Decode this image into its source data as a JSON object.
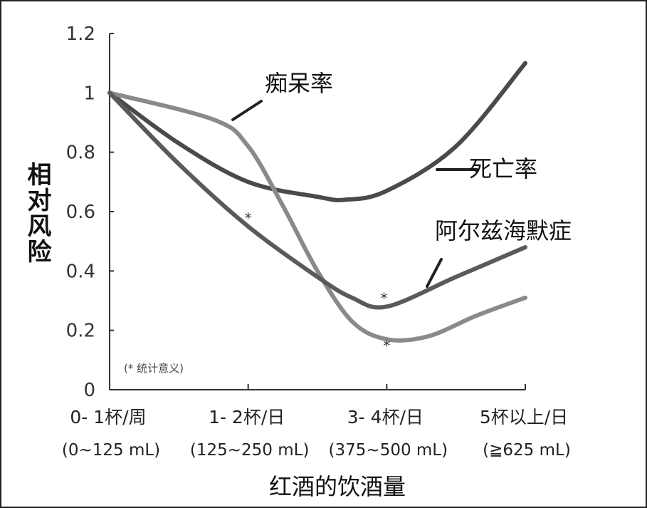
{
  "chart_data": {
    "type": "line",
    "title": "",
    "xlabel": "红酒的饮酒量",
    "ylabel": "相对风险",
    "ylim": [
      0,
      1.2
    ],
    "yticks": [
      "0",
      "0.2",
      "0.4",
      "0.6",
      "0.8",
      "1",
      "1.2"
    ],
    "categories": [
      {
        "label": "0- 1杯/周",
        "sub": "(0~125 mL)"
      },
      {
        "label": "1- 2杯/日",
        "sub": "(125~250 mL)"
      },
      {
        "label": "3- 4杯/日",
        "sub": "(375~500 mL)"
      },
      {
        "label": "5杯以上/日",
        "sub": "(≧625 mL)"
      }
    ],
    "series": [
      {
        "name": "死亡率",
        "color": "#4a4a4a",
        "points": [
          [
            0,
            1.0
          ],
          [
            0.5,
            0.83
          ],
          [
            1,
            0.7
          ],
          [
            1.5,
            0.65
          ],
          [
            1.7,
            0.64
          ],
          [
            2,
            0.67
          ],
          [
            2.5,
            0.82
          ],
          [
            3,
            1.1
          ]
        ]
      },
      {
        "name": "痴呆率",
        "color": "#8a8a8a",
        "points": [
          [
            0,
            1.0
          ],
          [
            0.75,
            0.91
          ],
          [
            1,
            0.82
          ],
          [
            1.25,
            0.62
          ],
          [
            1.5,
            0.4
          ],
          [
            1.75,
            0.23
          ],
          [
            2,
            0.17
          ],
          [
            2.3,
            0.18
          ],
          [
            2.65,
            0.25
          ],
          [
            3,
            0.31
          ]
        ]
      },
      {
        "name": "阿尔兹海默症",
        "color": "#5a5a5a",
        "points": [
          [
            0,
            1.0
          ],
          [
            0.5,
            0.76
          ],
          [
            1,
            0.55
          ],
          [
            1.5,
            0.38
          ],
          [
            1.75,
            0.31
          ],
          [
            2,
            0.28
          ],
          [
            2.5,
            0.38
          ],
          [
            3,
            0.48
          ]
        ]
      }
    ],
    "annotations": [
      {
        "text": "*",
        "x": 1.0,
        "y": 0.58
      },
      {
        "text": "*",
        "x": 1.98,
        "y": 0.31
      },
      {
        "text": "*",
        "x": 2.0,
        "y": 0.15
      }
    ],
    "note": "(* 统计意义)"
  }
}
